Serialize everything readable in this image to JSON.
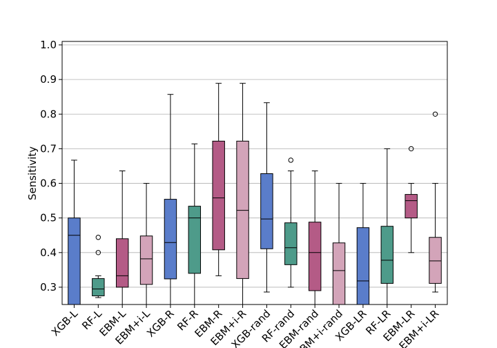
{
  "chart_data": {
    "type": "box",
    "ylabel": "Sensitivity",
    "ylim": [
      0.25,
      1.01
    ],
    "yticks": [
      "0.3",
      "0.4",
      "0.5",
      "0.6",
      "0.7",
      "0.8",
      "0.9",
      "1.0"
    ],
    "grid": "horizontal",
    "categories": [
      "XGB-L",
      "RF-L",
      "EBM-L",
      "EBM+i-L",
      "XGB-R",
      "RF-R",
      "EBM-R",
      "EBM+i-R",
      "XGB-rand",
      "RF-rand",
      "EBM-rand",
      "EBM+i-rand",
      "XGB-LR",
      "RF-LR",
      "EBM-LR",
      "EBM+i-LR"
    ],
    "colors": {
      "XGB": "#5a7dca",
      "RF": "#4e9b8a",
      "EBM": "#b45b86",
      "EBM+i": "#d3a4b9"
    },
    "boxes": [
      {
        "label": "XGB-L",
        "group": "XGB",
        "whislo": 0.2,
        "q1": 0.25,
        "med": 0.45,
        "q3": 0.5,
        "whishi": 0.667,
        "fliers": []
      },
      {
        "label": "RF-L",
        "group": "RF",
        "whislo": 0.27,
        "q1": 0.275,
        "med": 0.295,
        "q3": 0.325,
        "whishi": 0.333,
        "fliers": [
          0.4,
          0.444
        ]
      },
      {
        "label": "EBM-L",
        "group": "EBM",
        "whislo": 0.25,
        "q1": 0.3,
        "med": 0.333,
        "q3": 0.44,
        "whishi": 0.636,
        "fliers": []
      },
      {
        "label": "EBM+i-L",
        "group": "EBM+i",
        "whislo": 0.25,
        "q1": 0.308,
        "med": 0.382,
        "q3": 0.448,
        "whishi": 0.6,
        "fliers": []
      },
      {
        "label": "XGB-R",
        "group": "XGB",
        "whislo": 0.2,
        "q1": 0.324,
        "med": 0.429,
        "q3": 0.554,
        "whishi": 0.857,
        "fliers": []
      },
      {
        "label": "RF-R",
        "group": "RF",
        "whislo": 0.2,
        "q1": 0.34,
        "med": 0.5,
        "q3": 0.534,
        "whishi": 0.714,
        "fliers": []
      },
      {
        "label": "EBM-R",
        "group": "EBM",
        "whislo": 0.333,
        "q1": 0.408,
        "med": 0.558,
        "q3": 0.722,
        "whishi": 0.889,
        "fliers": []
      },
      {
        "label": "EBM+i-R",
        "group": "EBM+i",
        "whislo": 0.2,
        "q1": 0.325,
        "med": 0.522,
        "q3": 0.722,
        "whishi": 0.889,
        "fliers": []
      },
      {
        "label": "XGB-rand",
        "group": "XGB",
        "whislo": 0.286,
        "q1": 0.411,
        "med": 0.497,
        "q3": 0.628,
        "whishi": 0.833,
        "fliers": []
      },
      {
        "label": "RF-rand",
        "group": "RF",
        "whislo": 0.3,
        "q1": 0.365,
        "med": 0.414,
        "q3": 0.486,
        "whishi": 0.636,
        "fliers": [
          0.667
        ]
      },
      {
        "label": "EBM-rand",
        "group": "EBM",
        "whislo": 0.2,
        "q1": 0.29,
        "med": 0.4,
        "q3": 0.488,
        "whishi": 0.636,
        "fliers": []
      },
      {
        "label": "EBM+i-rand",
        "group": "EBM+i",
        "whislo": 0.2,
        "q1": 0.25,
        "med": 0.348,
        "q3": 0.428,
        "whishi": 0.6,
        "fliers": []
      },
      {
        "label": "XGB-LR",
        "group": "XGB",
        "whislo": 0.2,
        "q1": 0.25,
        "med": 0.318,
        "q3": 0.472,
        "whishi": 0.6,
        "fliers": []
      },
      {
        "label": "RF-LR",
        "group": "RF",
        "whislo": 0.2,
        "q1": 0.311,
        "med": 0.378,
        "q3": 0.476,
        "whishi": 0.7,
        "fliers": []
      },
      {
        "label": "EBM-LR",
        "group": "EBM",
        "whislo": 0.4,
        "q1": 0.5,
        "med": 0.55,
        "q3": 0.568,
        "whishi": 0.6,
        "fliers": [
          0.7
        ]
      },
      {
        "label": "EBM+i-LR",
        "group": "EBM+i",
        "whislo": 0.286,
        "q1": 0.311,
        "med": 0.376,
        "q3": 0.444,
        "whishi": 0.6,
        "fliers": [
          0.8
        ]
      }
    ]
  }
}
